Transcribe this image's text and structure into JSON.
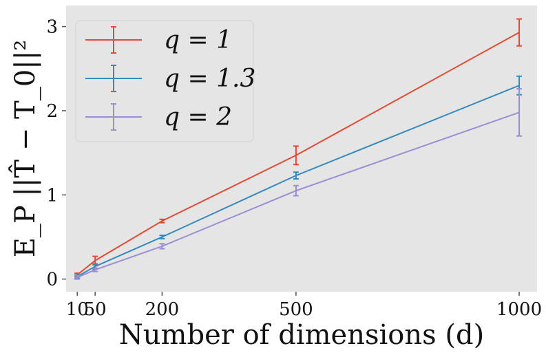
{
  "chart_data": {
    "type": "line",
    "title": "",
    "xlabel": "Number of dimensions (d)",
    "ylabel": "E_P ||T̂ − T_0||²",
    "x": [
      10,
      50,
      200,
      500,
      1000
    ],
    "x_tick_labels": [
      "10",
      "50",
      "200",
      "500",
      "1000"
    ],
    "y_ticks": [
      0,
      1,
      2,
      3
    ],
    "xlim": [
      -15,
      1040
    ],
    "ylim": [
      -0.15,
      3.25
    ],
    "grid": false,
    "legend_position": "top-left",
    "background": "#e5e5e5",
    "series": [
      {
        "name": "q = 1",
        "color": "#e24a33",
        "values": [
          0.05,
          0.22,
          0.69,
          1.47,
          2.93
        ],
        "errors": [
          0.02,
          0.05,
          0.02,
          0.11,
          0.16
        ]
      },
      {
        "name": "q = 1.3",
        "color": "#348abd",
        "values": [
          0.03,
          0.15,
          0.5,
          1.23,
          2.3
        ],
        "errors": [
          0.02,
          0.03,
          0.02,
          0.04,
          0.11
        ]
      },
      {
        "name": "q = 2",
        "color": "#988ed5",
        "values": [
          0.02,
          0.11,
          0.39,
          1.05,
          1.98
        ],
        "errors": [
          0.02,
          0.02,
          0.03,
          0.06,
          0.28
        ]
      }
    ]
  }
}
